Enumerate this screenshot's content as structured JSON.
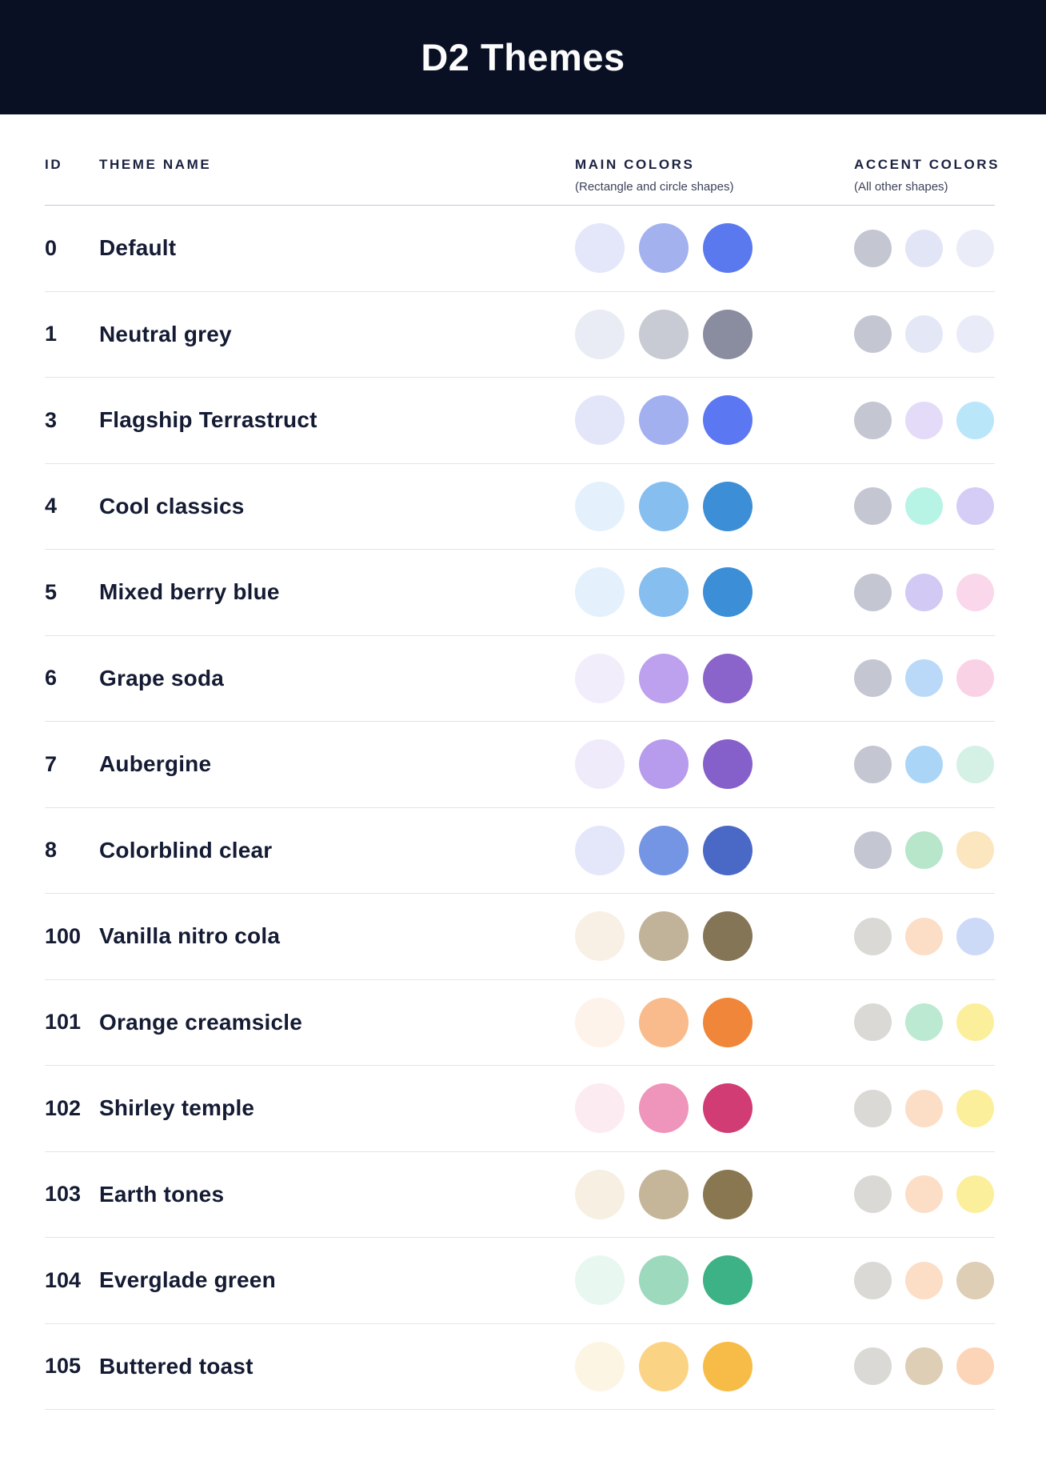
{
  "header": {
    "title": "D2 Themes",
    "background": "#0A1024",
    "title_color": "#FCFCFD"
  },
  "table": {
    "columns": {
      "id_label": "ID",
      "name_label": "THEME NAME",
      "main_label": "MAIN COLORS",
      "main_sub": "(Rectangle and circle shapes)",
      "accent_label": "ACCENT COLORS",
      "accent_sub": "(All other shapes)"
    },
    "rows": [
      {
        "id": "0",
        "name": "Default",
        "main": [
          "#E4E7F9",
          "#A3B2EF",
          "#5B79EE"
        ],
        "accent": [
          "#C4C7D2",
          "#E2E5F6",
          "#EAEDF7"
        ]
      },
      {
        "id": "1",
        "name": "Neutral grey",
        "main": [
          "#EAECF5",
          "#C8CAD4",
          "#8A8C9F"
        ],
        "accent": [
          "#C4C7D2",
          "#E4E7F6",
          "#E9ECF8"
        ]
      },
      {
        "id": "3",
        "name": "Flagship Terrastruct",
        "main": [
          "#E3E6F9",
          "#A2B0F0",
          "#5B78F2"
        ],
        "accent": [
          "#C4C7D2",
          "#E3DBF8",
          "#B9E6F9"
        ]
      },
      {
        "id": "4",
        "name": "Cool classics",
        "main": [
          "#E4F1FC",
          "#85BEEF",
          "#3C8ED7"
        ],
        "accent": [
          "#C4C7D2",
          "#B8F4E6",
          "#D6CDF7"
        ]
      },
      {
        "id": "5",
        "name": "Mixed berry blue",
        "main": [
          "#E4F1FC",
          "#85BEEF",
          "#3C8ED7"
        ],
        "accent": [
          "#C4C7D2",
          "#D2C9F4",
          "#FAD7EA"
        ]
      },
      {
        "id": "6",
        "name": "Grape soda",
        "main": [
          "#F2EDFB",
          "#BDA1EE",
          "#8B64CB"
        ],
        "accent": [
          "#C4C7D2",
          "#BAD9F8",
          "#FAD2E6"
        ]
      },
      {
        "id": "7",
        "name": "Aubergine",
        "main": [
          "#F0EBFA",
          "#B79BEC",
          "#8560CB"
        ],
        "accent": [
          "#C4C7D2",
          "#ABD5F7",
          "#D5F1E5"
        ]
      },
      {
        "id": "8",
        "name": "Colorblind clear",
        "main": [
          "#E3E7F9",
          "#7495E4",
          "#4A69C7"
        ],
        "accent": [
          "#C4C7D2",
          "#B7E6CA",
          "#FBE6BF"
        ]
      },
      {
        "id": "100",
        "name": "Vanilla nitro cola",
        "main": [
          "#F8F0E5",
          "#C1B39A",
          "#847557"
        ],
        "accent": [
          "#DAD9D5",
          "#FCDEC7",
          "#CCDAF8"
        ]
      },
      {
        "id": "101",
        "name": "Orange creamsicle",
        "main": [
          "#FDF3EB",
          "#F9BB8B",
          "#EF8639"
        ],
        "accent": [
          "#DAD9D5",
          "#BCE9D2",
          "#FBEF9B"
        ]
      },
      {
        "id": "102",
        "name": "Shirley temple",
        "main": [
          "#FCEBF1",
          "#EF94BB",
          "#D03C73"
        ],
        "accent": [
          "#DAD9D5",
          "#FCDEC7",
          "#FBEF9B"
        ]
      },
      {
        "id": "103",
        "name": "Earth tones",
        "main": [
          "#F8EFE3",
          "#C5B69A",
          "#887750"
        ],
        "accent": [
          "#DAD9D5",
          "#FCDEC7",
          "#FBEF9B"
        ]
      },
      {
        "id": "104",
        "name": "Everglade green",
        "main": [
          "#E8F8F1",
          "#9CD9BD",
          "#3CB286"
        ],
        "accent": [
          "#DAD9D5",
          "#FCDEC7",
          "#DDCEB5"
        ]
      },
      {
        "id": "105",
        "name": "Buttered toast",
        "main": [
          "#FDF5E4",
          "#FBD385",
          "#F7BC47"
        ],
        "accent": [
          "#DAD9D5",
          "#DDCEB5",
          "#FCD5B8"
        ]
      }
    ]
  },
  "colors": {
    "row_separator": "#E2E4ED",
    "header_separator": "#C6C9D6",
    "text_primary": "#141B33",
    "text_secondary": "#3C4358"
  }
}
